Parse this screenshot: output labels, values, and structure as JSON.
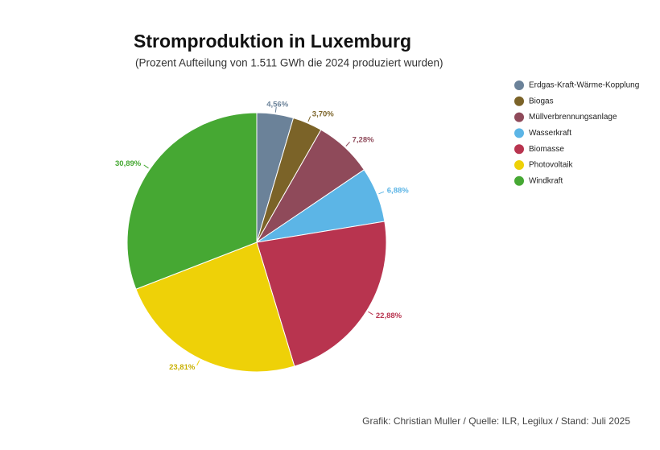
{
  "chart_data": {
    "type": "pie",
    "title": "Stromproduktion in Luxemburg",
    "subtitle": "(Prozent Aufteilung von 1.511 GWh die 2024 produziert wurden)",
    "source": "Grafik: Christian Muller / Quelle: ILR, Legilux / Stand: Juli 2025",
    "categories": [
      "Erdgas-Kraft-Wärme-Kopplung",
      "Biogas",
      "Müllverbrennungsanlage",
      "Wasserkraft",
      "Biomasse",
      "Photovoltaik",
      "Windkraft"
    ],
    "values": [
      4.56,
      3.7,
      7.28,
      6.88,
      22.88,
      23.81,
      30.89
    ],
    "value_labels": [
      "4,56%",
      "3,70%",
      "7,28%",
      "6,88%",
      "22,88%",
      "23,81%",
      "30,89%"
    ],
    "colors": [
      "#6b8299",
      "#7b6328",
      "#8f4a5a",
      "#5cb5e6",
      "#b8344f",
      "#eed108",
      "#46a833"
    ],
    "legend": "top-right"
  }
}
